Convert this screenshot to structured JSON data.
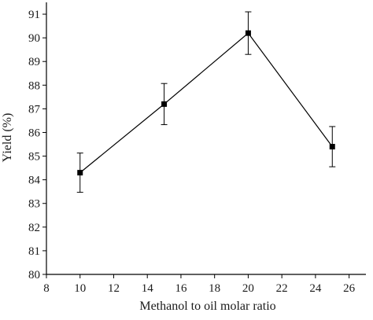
{
  "chart_data": {
    "type": "line",
    "xlabel": "Methanol to oil molar ratio",
    "ylabel": "Yield (%)",
    "xlim": [
      8,
      27
    ],
    "ylim": [
      80,
      91.5
    ],
    "x_ticks": [
      8,
      10,
      12,
      14,
      16,
      18,
      20,
      22,
      24,
      26
    ],
    "y_ticks": [
      80,
      81,
      82,
      83,
      84,
      85,
      86,
      87,
      88,
      89,
      90,
      91
    ],
    "series": [
      {
        "x": [
          10,
          15,
          20,
          25
        ],
        "y": [
          84.3,
          87.2,
          90.2,
          85.4
        ],
        "error": [
          0.83,
          0.87,
          0.9,
          0.85
        ],
        "marker": "square",
        "color": "#000000"
      }
    ],
    "grid": false,
    "legend": "none"
  }
}
